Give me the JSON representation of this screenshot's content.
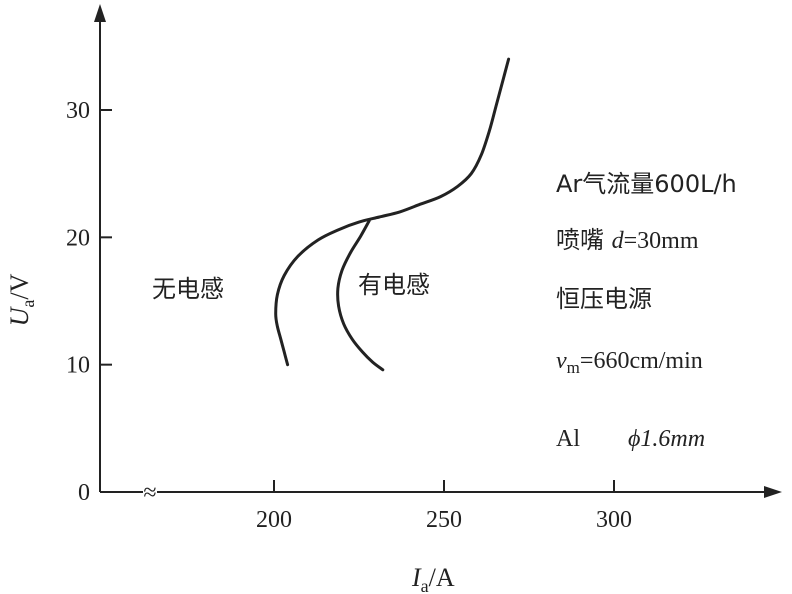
{
  "chart_data": {
    "type": "line",
    "xlabel_var": "I",
    "xlabel_sub": "a",
    "xlabel_unit": "/A",
    "ylabel_var": "U",
    "ylabel_sub": "a",
    "ylabel_unit": "/V",
    "x_ticks": [
      200,
      250,
      300
    ],
    "y_ticks": [
      0,
      10,
      20,
      30
    ],
    "xlim": [
      150,
      345
    ],
    "ylim": [
      0,
      38
    ],
    "x_axis_break": true,
    "series": [
      {
        "name": "无电感",
        "points": [
          [
            204,
            10
          ],
          [
            203,
            11
          ],
          [
            202,
            12
          ],
          [
            201,
            13
          ],
          [
            200.5,
            14
          ],
          [
            201,
            15.5
          ],
          [
            203,
            17
          ],
          [
            207,
            18.5
          ],
          [
            213,
            19.8
          ],
          [
            219,
            20.6
          ],
          [
            225,
            21.2
          ],
          [
            231,
            21.6
          ],
          [
            237,
            22
          ],
          [
            243,
            22.6
          ],
          [
            249,
            23.2
          ],
          [
            254,
            24
          ],
          [
            258,
            25
          ],
          [
            261,
            26.5
          ],
          [
            263.5,
            28.5
          ],
          [
            265.5,
            30.5
          ],
          [
            267.5,
            32.5
          ],
          [
            269,
            34
          ]
        ]
      },
      {
        "name": "有电感",
        "points": [
          [
            232,
            9.6
          ],
          [
            229,
            10.2
          ],
          [
            226,
            11
          ],
          [
            223,
            12
          ],
          [
            220.5,
            13.2
          ],
          [
            219,
            14.6
          ],
          [
            218.8,
            16
          ],
          [
            220,
            17.4
          ],
          [
            222.5,
            18.8
          ],
          [
            225.5,
            20.1
          ],
          [
            228,
            21.3
          ]
        ]
      }
    ],
    "annotations": [
      "Ar气流量600L/h",
      "喷嘴 d=30mm",
      "恒压电源",
      "660cm/min",
      "Al",
      "ϕ1.6mm"
    ],
    "annotation_vm_var": "v",
    "annotation_vm_sub": "m",
    "annotation_vm_eq": "=",
    "annotation_d_var": "d",
    "axis_break_symbol": "≈"
  },
  "colors": {
    "ink": "#222222",
    "background": "#ffffff"
  }
}
